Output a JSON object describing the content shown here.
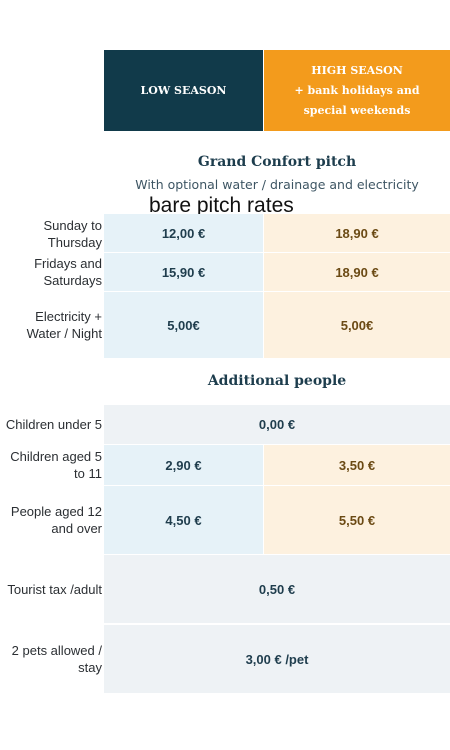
{
  "header": {
    "low_season": "LOW SEASON",
    "high_season_line1": "HIGH SEASON",
    "high_season_line2": "+ bank holidays and special weekends"
  },
  "pitch": {
    "title": "Grand Confort pitch",
    "subtitle": "With optional water / drainage and electricity",
    "overlay": "bare pitch rates",
    "rows": [
      {
        "label": "Sunday to Thursday",
        "low": "12,00 €",
        "high": "18,90 €"
      },
      {
        "label": "Fridays and Saturdays",
        "low": "15,90 €",
        "high": "18,90 €"
      },
      {
        "label": "Electricity + Water / Night",
        "low": "5,00€",
        "high": "5,00€"
      }
    ]
  },
  "additional": {
    "title": "Additional people",
    "rows": [
      {
        "label": "Children under 5",
        "value": "0,00 €"
      },
      {
        "label": "Children aged 5 to 11",
        "low": "2,90 €",
        "high": "3,50 €"
      },
      {
        "label": "People aged 12 and over",
        "low": "4,50 €",
        "high": "5,50 €"
      },
      {
        "label": "Tourist tax /adult",
        "value": "0,50 €"
      },
      {
        "label": "2 pets allowed / stay",
        "value": "3,00 € /pet"
      }
    ]
  }
}
